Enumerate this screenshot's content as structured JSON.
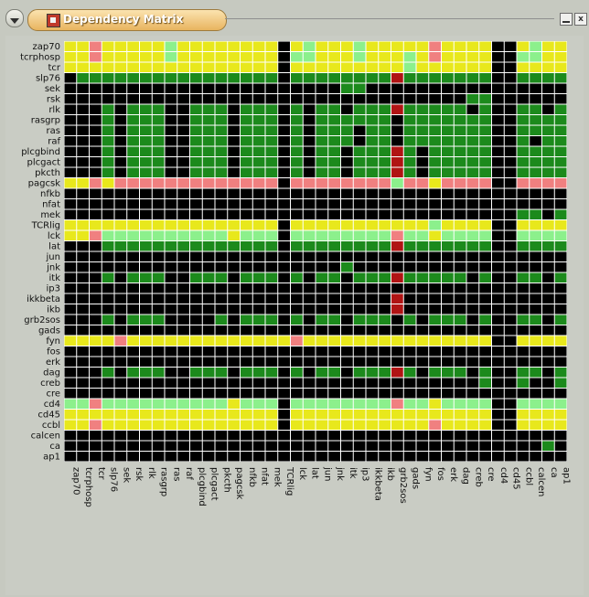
{
  "window": {
    "title": "Dependency Matrix",
    "controls": {
      "minimize_icon": "minimize-icon",
      "close_label": "x"
    }
  },
  "colors": {
    "black": "#000000",
    "green": "#1c8a1c",
    "light_green": "#8cf08c",
    "yellow": "#e8e81c",
    "pink": "#f08080",
    "red": "#b01414",
    "grid": "#ffffff"
  },
  "legend_codes": {
    "0": "black",
    "1": "green",
    "2": "light_green",
    "3": "yellow",
    "4": "pink",
    "5": "red"
  },
  "matrix": {
    "row_labels": [
      "zap70",
      "tcrphosp",
      "tcr",
      "slp76",
      "sek",
      "rsk",
      "rlk",
      "rasgrp",
      "ras",
      "raf",
      "plcgbind",
      "plcgact",
      "pkcth",
      "pagcsk",
      "nfkb",
      "nfat",
      "mek",
      "TCRlig",
      "lck",
      "lat",
      "jun",
      "jnk",
      "itk",
      "ip3",
      "ikkbeta",
      "ikb",
      "grb2sos",
      "gads",
      "fyn",
      "fos",
      "erk",
      "dag",
      "creb",
      "cre",
      "cd4",
      "cd45",
      "ccbl",
      "calcen",
      "ca",
      "ap1"
    ],
    "col_labels": [
      "zap70",
      "tcrphosp",
      "tcr",
      "slp76",
      "sek",
      "rsk",
      "rlk",
      "rasgrp",
      "ras",
      "raf",
      "plcgbind",
      "plcgact",
      "pkcth",
      "pagcsk",
      "nfkb",
      "nfat",
      "mek",
      "TCRlig",
      "lck",
      "lat",
      "jun",
      "jnk",
      "itk",
      "ip3",
      "ikkbeta",
      "ikb",
      "grb2sos",
      "gads",
      "fyn",
      "fos",
      "erk",
      "dag",
      "creb",
      "cre",
      "cd4",
      "cd45",
      "ccbl",
      "calcen",
      "ca",
      "ap1"
    ],
    "rows": [
      "3343333323333333303233323333343333003233",
      "3343333323333333302233323332343333002233",
      "3333333333333333303333333332333333003333",
      "0111111111111111101111111151111111001111",
      "0000000000000000000000110000000000000000",
      "0000000000000000000000000000000011000000",
      "0001011100111011101011011151111101001101",
      "0001011100111011101011111101111111001111",
      "0001011100111011101011101101111111001111",
      "0001011100111011101011101101111111001011",
      "0001011100111011101011011151011111001111",
      "0001011100111011101011011151011111001111",
      "0001011100111011101011011151011111001111",
      "3343444444444444404444444424434444004444",
      "0000000000000000000000000000000000000000",
      "0000000000000000000000000000000000000000",
      "0000000000000000000000000000000000001101",
      "3333333333333333303333333333323333003333",
      "3342222222222322202222222242232222002222",
      "0001111111111111101111111151111111001111",
      "0000000000000000000000000000000000000000",
      "0000000000000000000000100000000000000000",
      "0001011100111011101011011151111101001101",
      "0000000000000000000000000000000000000000",
      "0000000000000000000000000050000000000000",
      "0000000000000000000000000050000000000000",
      "0001011100001011101011011101011101001101",
      "0000000000000000000000000000000000000000",
      "3333433333333333334333333333333333003333",
      "0000000000000000000000000000000000000000",
      "0000000000000000000000000000000000000000",
      "0001011100111011101011011151011101001101",
      "0000000000000000000000000000000001001001",
      "0000000000000000000000000000000000000000",
      "2242222222222322202222222242232222002222",
      "3333333333333333303333333333333333003333",
      "3343333333333333303333333333343333003333",
      "0000000000000000000000000000000000000000",
      "0000000000000000000000000000000000000010",
      "0000000000000000000000000000000000000000"
    ]
  }
}
